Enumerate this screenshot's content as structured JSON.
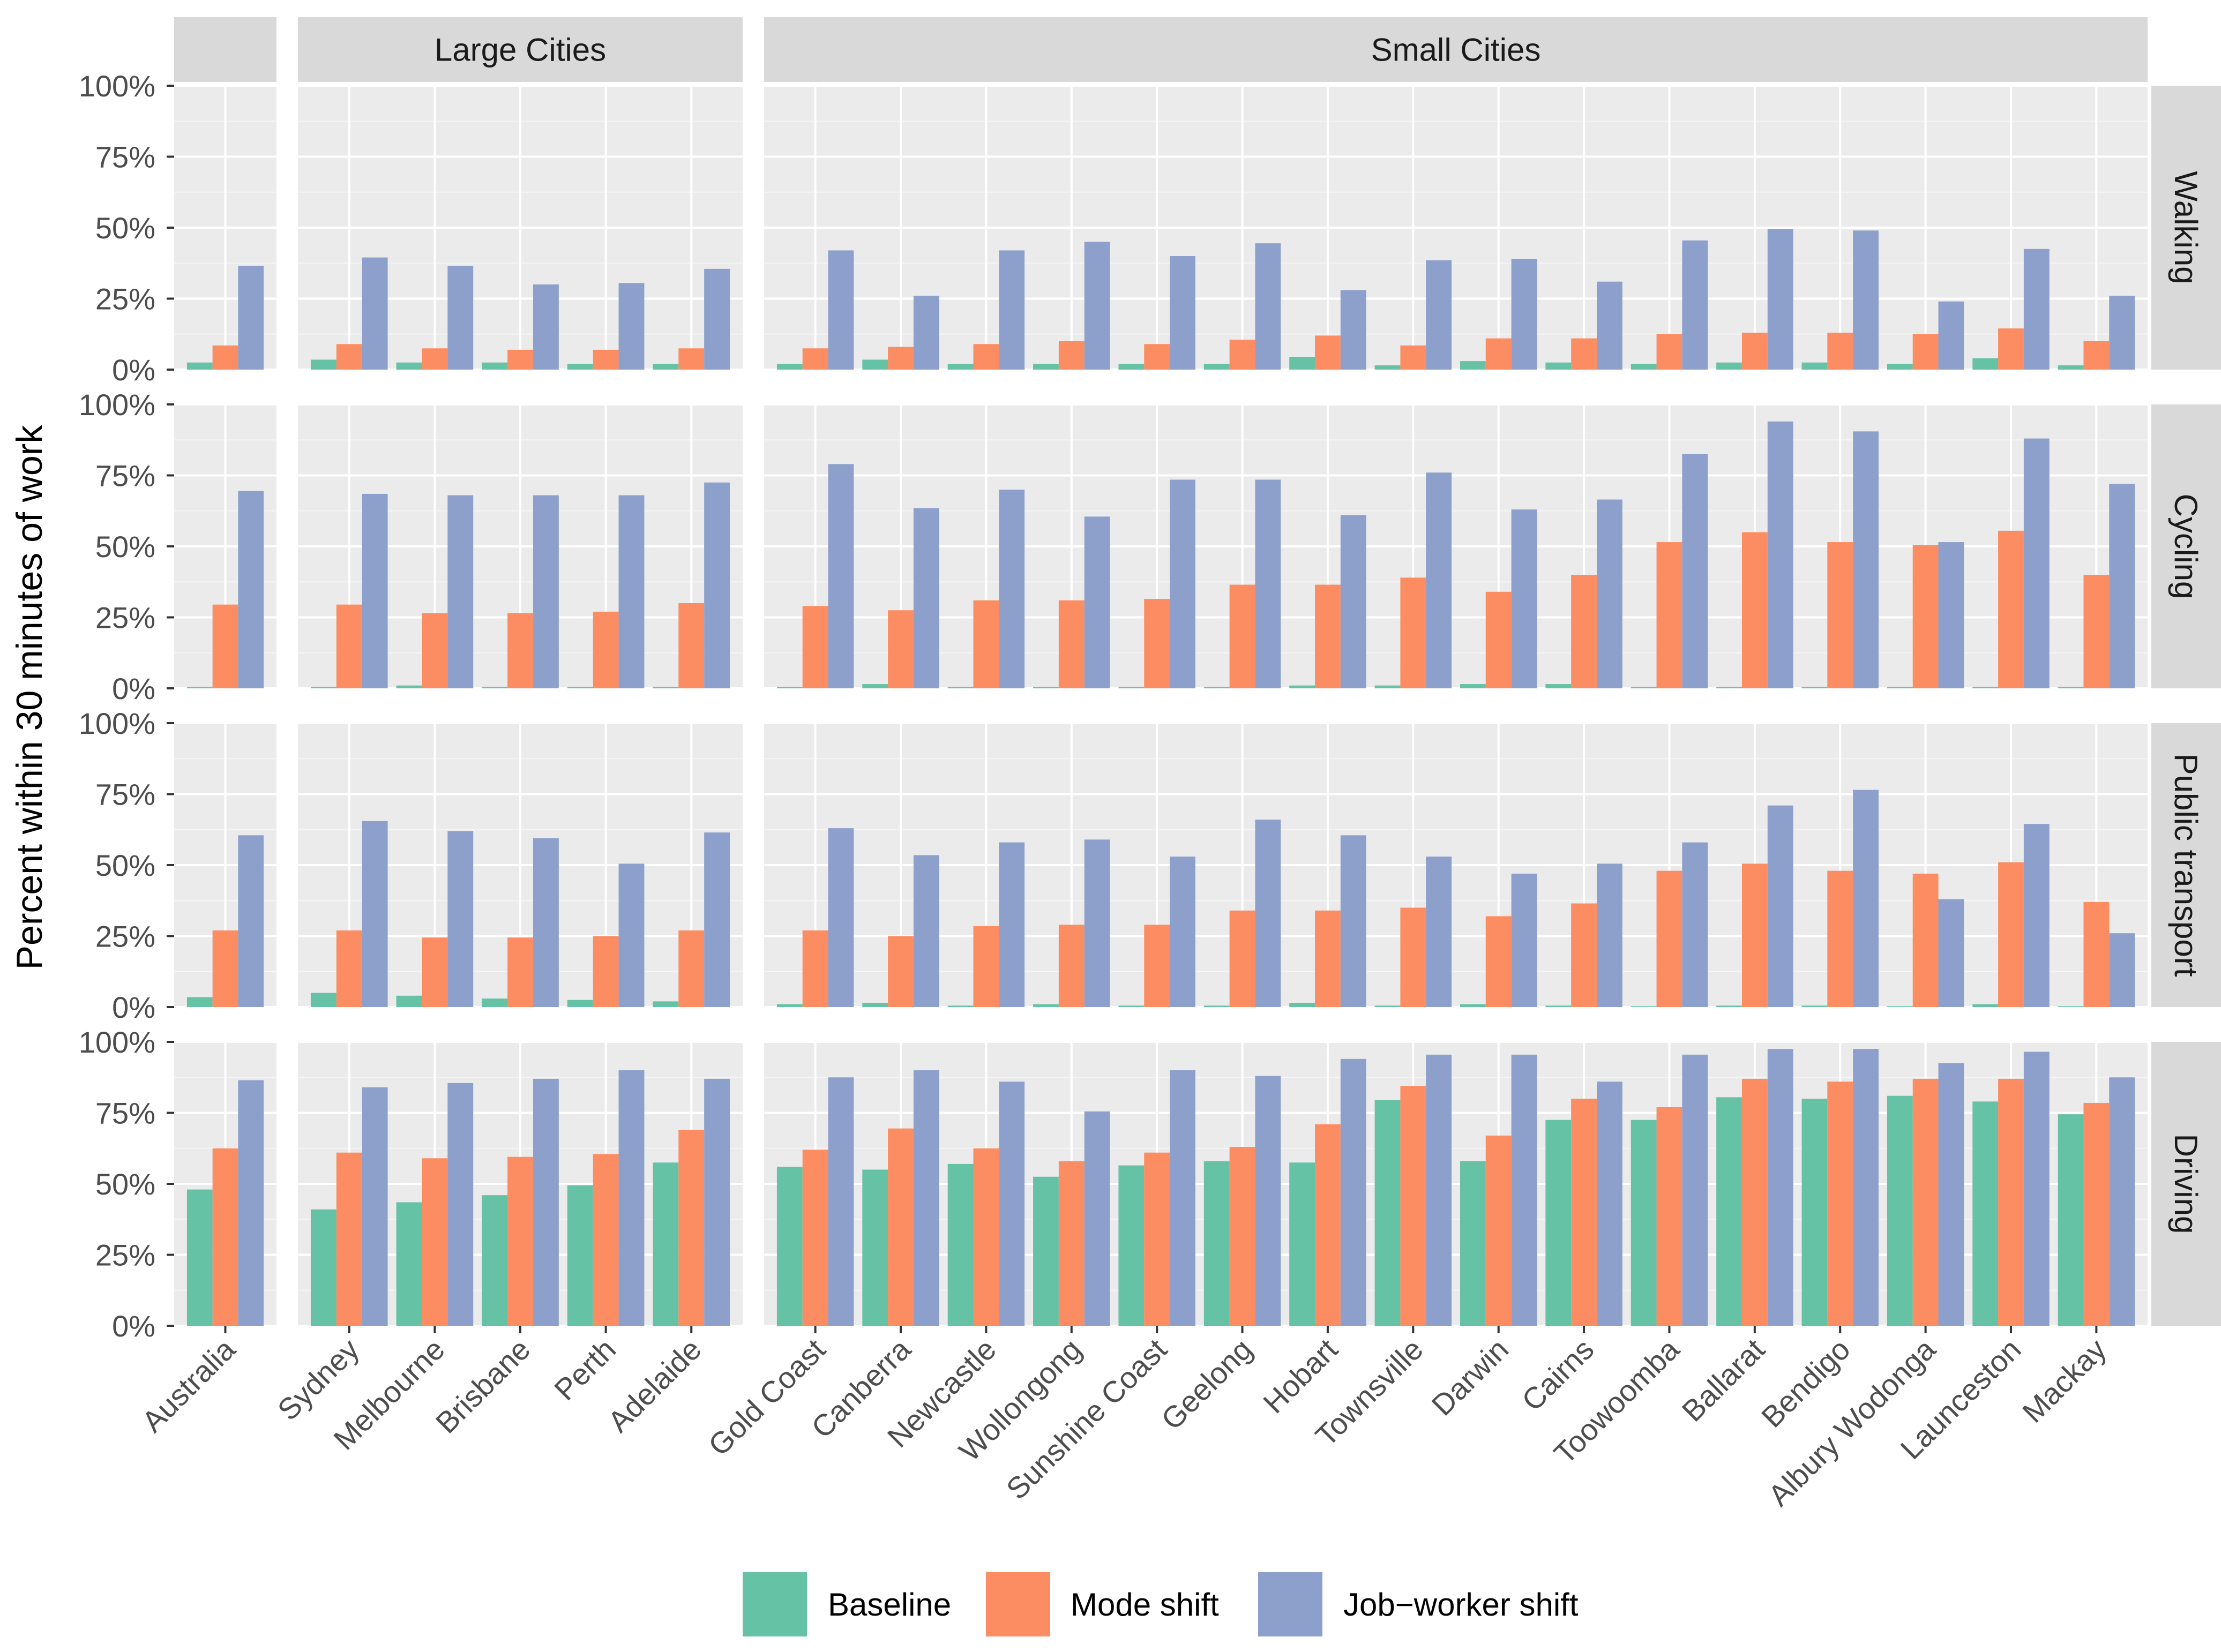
{
  "chart_data": {
    "type": "bar",
    "ylabel": "Percent within 30 minutes of work",
    "xlabel": "",
    "ylim": [
      0,
      1
    ],
    "y_ticks": [
      "0%",
      "25%",
      "50%",
      "75%",
      "100%"
    ],
    "column_panels": [
      {
        "label": "",
        "cities": [
          "Australia"
        ]
      },
      {
        "label": "Large Cities",
        "cities": [
          "Sydney",
          "Melbourne",
          "Brisbane",
          "Perth",
          "Adelaide"
        ]
      },
      {
        "label": "Small Cities",
        "cities": [
          "Gold Coast",
          "Canberra",
          "Newcastle",
          "Wollongong",
          "Sunshine Coast",
          "Geelong",
          "Hobart",
          "Townsville",
          "Darwin",
          "Cairns",
          "Toowoomba",
          "Ballarat",
          "Bendigo",
          "Albury Wodonga",
          "Launceston",
          "Mackay"
        ]
      }
    ],
    "series": [
      {
        "name": "Baseline",
        "color": "#66c2a5"
      },
      {
        "name": "Mode shift",
        "color": "#fc8d62"
      },
      {
        "name": "Job−worker shift",
        "color": "#8da0cb"
      }
    ],
    "rows": [
      {
        "label": "Walking",
        "values": {
          "Baseline": [
            2.5,
            3.5,
            2.5,
            2.5,
            2,
            2,
            2,
            3.5,
            2,
            2,
            2,
            2,
            4.5,
            1.5,
            3,
            2.5,
            2,
            2.5,
            2.5,
            2,
            4,
            1.5
          ],
          "Mode shift": [
            8.5,
            9,
            7.5,
            7,
            7,
            7.5,
            7.5,
            8,
            9,
            10,
            9,
            10.5,
            12,
            8.5,
            11,
            11,
            12.5,
            13,
            13,
            12.5,
            14.5,
            10
          ],
          "Job−worker shift": [
            36.5,
            39.5,
            36.5,
            30,
            30.5,
            35.5,
            42,
            26,
            42,
            45,
            40,
            44.5,
            28,
            38.5,
            39,
            31,
            45.5,
            49.5,
            49,
            24,
            42.5,
            26
          ]
        }
      },
      {
        "label": "Cycling",
        "values": {
          "Baseline": [
            0.5,
            0.5,
            1,
            0.5,
            0.5,
            0.5,
            0.5,
            1.5,
            0.5,
            0.5,
            0.5,
            0.5,
            1,
            1,
            1.5,
            1.5,
            0.5,
            0.5,
            0.5,
            0.5,
            0.5,
            0.5
          ],
          "Mode shift": [
            29.5,
            29.5,
            26.5,
            26.5,
            27,
            30,
            29,
            27.5,
            31,
            31,
            31.5,
            36.5,
            36.5,
            39,
            34,
            40,
            51.5,
            55,
            51.5,
            50.5,
            55.5,
            40
          ],
          "Job−worker shift": [
            69.5,
            68.5,
            68,
            68,
            68,
            72.5,
            79,
            63.5,
            70,
            60.5,
            73.5,
            73.5,
            61,
            76,
            63,
            66.5,
            82.5,
            94,
            90.5,
            51.5,
            88,
            72
          ]
        }
      },
      {
        "label": "Public transport",
        "values": {
          "Baseline": [
            3.5,
            5,
            4,
            3,
            2.5,
            2,
            1,
            1.5,
            0.5,
            1,
            0.5,
            0.5,
            1.5,
            0.5,
            1,
            0.5,
            0.3,
            0.5,
            0.5,
            0.3,
            1,
            0.3
          ],
          "Mode shift": [
            27,
            27,
            24.5,
            24.5,
            25,
            27,
            27,
            25,
            28.5,
            29,
            29,
            34,
            34,
            35,
            32,
            36.5,
            48,
            50.5,
            48,
            47,
            51,
            37
          ],
          "Job−worker shift": [
            60.5,
            65.5,
            62,
            59.5,
            50.5,
            61.5,
            63,
            53.5,
            58,
            59,
            53,
            66,
            60.5,
            53,
            47,
            50.5,
            58,
            71,
            76.5,
            38,
            64.5,
            26
          ]
        }
      },
      {
        "label": "Driving",
        "values": {
          "Baseline": [
            48,
            41,
            43.5,
            46,
            49.5,
            57.5,
            56,
            55,
            57,
            52.5,
            56.5,
            58,
            57.5,
            79.5,
            58,
            72.5,
            72.5,
            80.5,
            80,
            81,
            79,
            74.5
          ],
          "Mode shift": [
            62.5,
            61,
            59,
            59.5,
            60.5,
            69,
            62,
            69.5,
            62.5,
            58,
            61,
            63,
            71,
            84.5,
            67,
            80,
            77,
            87,
            86,
            87,
            87,
            78.5
          ],
          "Job−worker shift": [
            86.5,
            84,
            85.5,
            87,
            90,
            87,
            87.5,
            90,
            86,
            75.5,
            90,
            88,
            94,
            95.5,
            95.5,
            86,
            95.5,
            97.5,
            97.5,
            92.5,
            96.5,
            87.5
          ]
        }
      }
    ]
  }
}
